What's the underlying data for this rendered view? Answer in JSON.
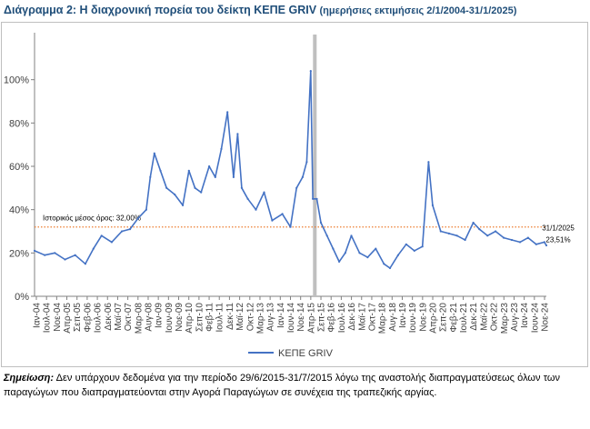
{
  "title": {
    "main": "Διάγραμμα 2: Η διαχρονική πορεία του δείκτη ΚΕΠΕ GRIV",
    "sub": "(ημερήσιες εκτιμήσεις 2/1/2004-31/1/2025)"
  },
  "note": {
    "label": "Σημείωση:",
    "text": "Δεν υπάρχουν δεδομένα για την περίοδο 29/6/2015-31/7/2015 λόγω της αναστολής διαπραγματεύσεως όλων των παραγώγων που διαπραγματεύονται στην Αγορά Παραγώγων σε συνέχεια της τραπεζικής αργίας."
  },
  "chart_data": {
    "type": "line",
    "title": "",
    "xlabel": "",
    "ylabel": "",
    "ylim": [
      0,
      1.2
    ],
    "ytick_values": [
      0,
      0.2,
      0.4,
      0.6,
      0.8,
      1.0
    ],
    "ytick_labels": [
      "0%",
      "20%",
      "40%",
      "60%",
      "80%",
      "100%"
    ],
    "xlim": [
      "2004-01",
      "2025-01"
    ],
    "xtick_labels": [
      "Ιαν-04",
      "Ιουλ-04",
      "Νοε-04",
      "Απρ-05",
      "Σεπ-05",
      "Φεβ-06",
      "Ιουλ-06",
      "Δεκ-06",
      "Μαϊ-07",
      "Οκτ-07",
      "Μαρ-08",
      "Αυγ-08",
      "Ιαν-09",
      "Ιουν-09",
      "Νοε-09",
      "Απρ-10",
      "Σεπ-10",
      "Φεβ-11",
      "Ιουλ-11",
      "Δεκ-11",
      "Μαϊ-12",
      "Οκτ-12",
      "Μαρ-13",
      "Αυγ-13",
      "Ιαν-14",
      "Ιουν-14",
      "Νοε-14",
      "Απρ-15",
      "Σεπ-15",
      "Φεβ-16",
      "Ιουλ-16",
      "Δεκ-16",
      "Μαϊ-17",
      "Οκτ-17",
      "Μαρ-18",
      "Αυγ-18",
      "Ιαν-19",
      "Ιουν-19",
      "Νοε-19",
      "Απρ-20",
      "Σεπ-20",
      "Φεβ-21",
      "Ιουλ-21",
      "Δεκ-21",
      "Μαϊ-22",
      "Οκτ-22",
      "Μαρ-23",
      "Αυγ-23",
      "Ιαν-24",
      "Ιουν-24",
      "Νοε-24"
    ],
    "grid": false,
    "legend": "bottom-center",
    "series": [
      {
        "name": "ΚΕΠΕ GRIV",
        "color": "#4472c4",
        "x": [
          "2004-01",
          "2004-06",
          "2004-11",
          "2005-04",
          "2005-09",
          "2006-02",
          "2006-06",
          "2006-10",
          "2007-03",
          "2007-08",
          "2007-12",
          "2008-04",
          "2008-08",
          "2008-10",
          "2008-12",
          "2009-03",
          "2009-06",
          "2009-10",
          "2010-02",
          "2010-05",
          "2010-08",
          "2010-11",
          "2011-03",
          "2011-06",
          "2011-09",
          "2011-12",
          "2012-03",
          "2012-05",
          "2012-07",
          "2012-10",
          "2013-02",
          "2013-06",
          "2013-10",
          "2014-03",
          "2014-07",
          "2014-10",
          "2015-01",
          "2015-03",
          "2015-05",
          "2015-06",
          "2015-08",
          "2015-10",
          "2016-01",
          "2016-04",
          "2016-07",
          "2016-10",
          "2017-01",
          "2017-05",
          "2017-09",
          "2018-01",
          "2018-05",
          "2018-08",
          "2018-12",
          "2019-04",
          "2019-08",
          "2019-12",
          "2020-03",
          "2020-05",
          "2020-09",
          "2021-01",
          "2021-05",
          "2021-09",
          "2022-01",
          "2022-04",
          "2022-08",
          "2022-12",
          "2023-04",
          "2023-08",
          "2023-12",
          "2024-04",
          "2024-08",
          "2024-12",
          "2025-01"
        ],
        "values": [
          0.21,
          0.19,
          0.2,
          0.17,
          0.19,
          0.15,
          0.22,
          0.28,
          0.25,
          0.3,
          0.31,
          0.36,
          0.4,
          0.55,
          0.66,
          0.58,
          0.5,
          0.47,
          0.42,
          0.58,
          0.5,
          0.48,
          0.6,
          0.55,
          0.68,
          0.85,
          0.55,
          0.75,
          0.5,
          0.45,
          0.4,
          0.48,
          0.35,
          0.38,
          0.32,
          0.5,
          0.55,
          0.62,
          1.04,
          0.45,
          0.45,
          0.34,
          0.28,
          0.22,
          0.16,
          0.2,
          0.28,
          0.2,
          0.18,
          0.22,
          0.15,
          0.13,
          0.19,
          0.24,
          0.21,
          0.23,
          0.62,
          0.42,
          0.3,
          0.29,
          0.28,
          0.26,
          0.34,
          0.31,
          0.28,
          0.3,
          0.27,
          0.26,
          0.25,
          0.27,
          0.24,
          0.25,
          0.2351
        ]
      }
    ],
    "annotations": {
      "mean_value": 0.32,
      "mean_label": "Ιστορικός μέσος όρος: 32,00%",
      "mean_color": "#ed7d31",
      "last_date": "31/1/2025",
      "last_value_label": "23,51%",
      "gap_marker_color": "#bfbfbf"
    }
  }
}
